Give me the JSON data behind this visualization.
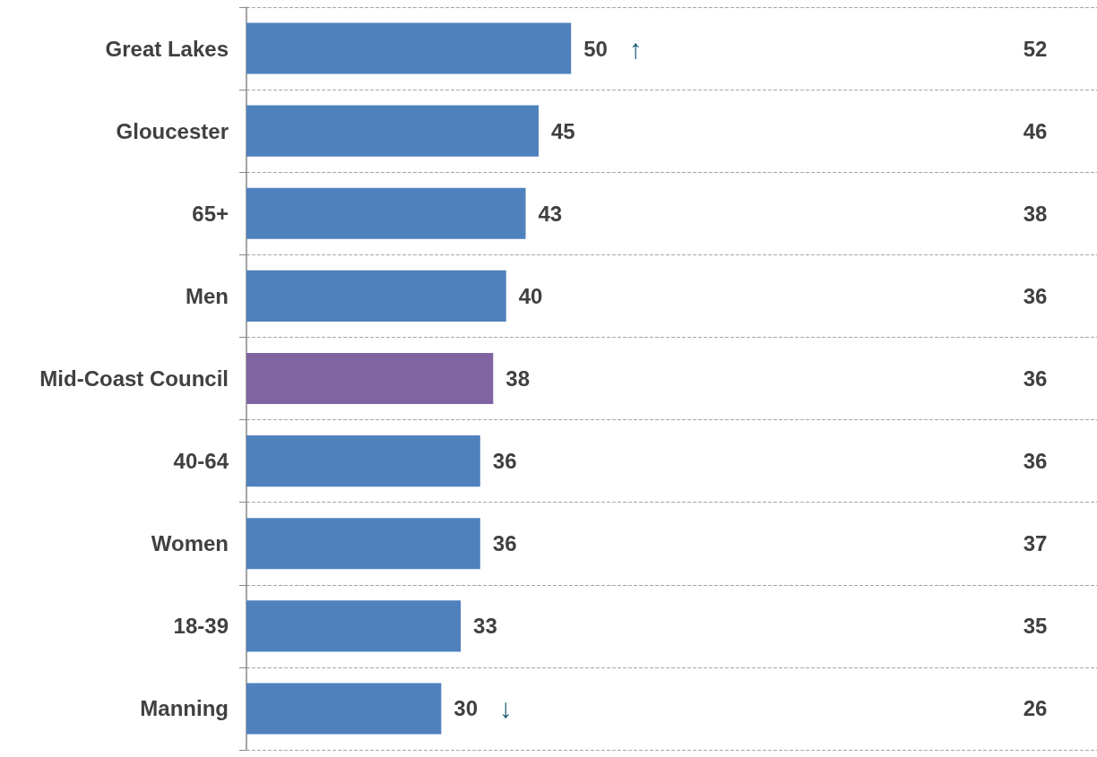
{
  "chart_data": {
    "type": "bar",
    "orientation": "horizontal",
    "categories": [
      "Great Lakes",
      "Gloucester",
      "65+",
      "Men",
      "Mid-Coast Council",
      "40-64",
      "Women",
      "18-39",
      "Manning"
    ],
    "values": [
      50,
      45,
      43,
      40,
      38,
      36,
      36,
      33,
      30
    ],
    "colors": [
      "#4f81bd",
      "#4f81bd",
      "#4f81bd",
      "#4f81bd",
      "#8064a2",
      "#4f81bd",
      "#4f81bd",
      "#4f81bd",
      "#4f81bd"
    ],
    "data_labels": true,
    "grid": "y",
    "annotations": [
      {
        "text": "↑",
        "x": 50,
        "y": "Great Lakes"
      },
      {
        "text": "↓",
        "x": 30,
        "y": "Manning"
      },
      "52",
      "46",
      "38",
      "36",
      "36",
      "36",
      "37",
      "35",
      "26"
    ]
  }
}
